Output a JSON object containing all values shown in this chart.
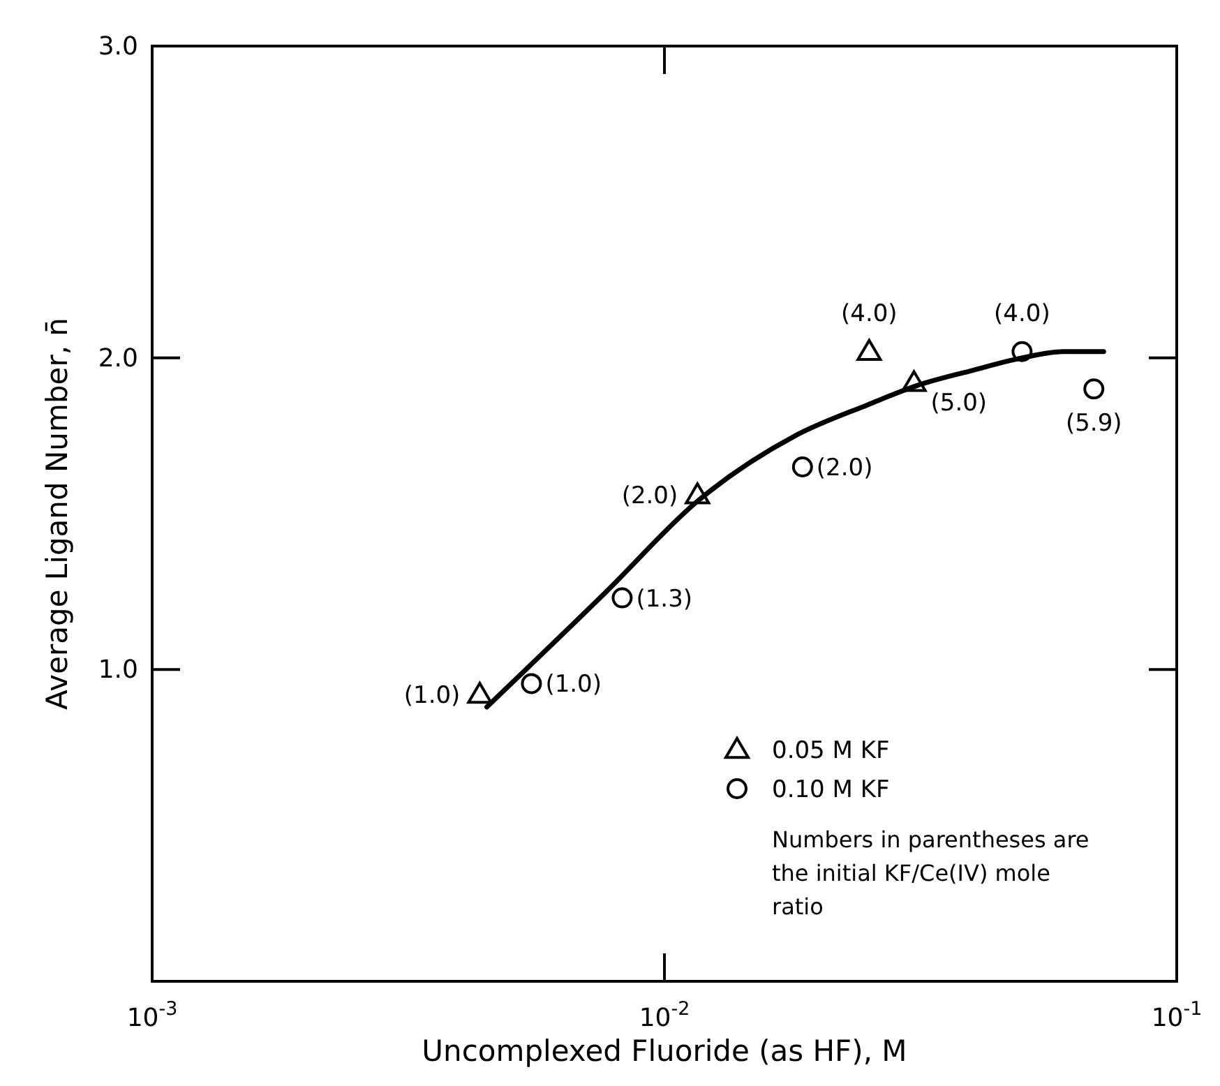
{
  "chart_data": {
    "type": "scatter",
    "xlabel": "Uncomplexed  Fluoride (as HF), M",
    "ylabel": "Average Ligand Number, n̄",
    "log": "x",
    "xlim": [
      0.001,
      0.1
    ],
    "xticks": [
      {
        "value": 0.001,
        "label": "10$^{-3}$"
      },
      {
        "value": 0.01,
        "label": "10$^{-2}$"
      },
      {
        "value": 0.1,
        "label": "10$^{-1}$"
      }
    ],
    "ylim": [
      0,
      3
    ],
    "yticks": [
      {
        "value": 1,
        "label": "1.0"
      },
      {
        "value": 2,
        "label": "2.0"
      },
      {
        "value": 3,
        "label": "3.0"
      }
    ],
    "grid": false,
    "legend": "bottom right",
    "series": [
      {
        "name": "0.05 M KF",
        "color": "#000000",
        "marker": "triangle",
        "x": [
          0.00436,
          0.0116,
          0.0251,
          0.0307
        ],
        "values": [
          0.92,
          1.56,
          2.02,
          1.92
        ]
      },
      {
        "name": "0.10 M KF",
        "color": "#000000",
        "marker": "circle",
        "x": [
          0.0055,
          0.00827,
          0.0186,
          0.0499,
          0.0689
        ],
        "values": [
          0.955,
          1.23,
          1.65,
          2.02,
          1.9
        ]
      },
      {
        "type": "line",
        "color": "#000000",
        "marker": "none",
        "line_style": "solid",
        "x": [
          0.0045,
          0.0077,
          0.0116,
          0.018,
          0.025,
          0.031,
          0.04,
          0.05,
          0.06,
          0.072
        ],
        "values": [
          0.88,
          1.25,
          1.54,
          1.75,
          1.85,
          1.91,
          1.96,
          2.0,
          2.02,
          2.02
        ]
      }
    ],
    "annotations": [
      {
        "text": "(1.0)",
        "x": 0.00436,
        "y": 0.92
      },
      {
        "text": "(2.0)",
        "x": 0.0116,
        "y": 1.56
      },
      {
        "text": "(4.0)",
        "x": 0.0251,
        "y": 2.02
      },
      {
        "text": "(5.0)",
        "x": 0.0307,
        "y": 1.92
      },
      {
        "text": "(1.0)",
        "x": 0.0055,
        "y": 0.955
      },
      {
        "text": "(1.3)",
        "x": 0.00827,
        "y": 1.23
      },
      {
        "text": "(2.0)",
        "x": 0.0186,
        "y": 1.65
      },
      {
        "text": "(4.0)",
        "x": 0.0499,
        "y": 2.02
      },
      {
        "text": "(5.9)",
        "x": 0.0689,
        "y": 1.9
      },
      "Numbers in parentheses are the initial KF/Ce(IV) mole ratio"
    ]
  }
}
